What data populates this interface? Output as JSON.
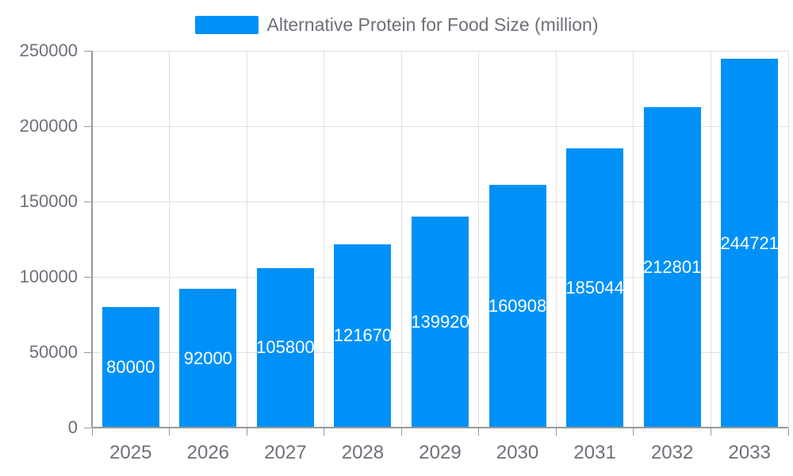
{
  "legend": {
    "label": "Alternative Protein for Food Size (million)"
  },
  "chart_data": {
    "type": "bar",
    "title": "Alternative Protein for Food Size (million)",
    "series_name": "Alternative Protein for Food Size (million)",
    "categories": [
      "2025",
      "2026",
      "2027",
      "2028",
      "2029",
      "2030",
      "2031",
      "2032",
      "2033"
    ],
    "values": [
      80000,
      92000,
      105800,
      121670,
      139920,
      160908,
      185044,
      212801,
      244721
    ],
    "value_labels": [
      "80000",
      "92000",
      "105800",
      "121670",
      "139920",
      "160908",
      "185044",
      "212801",
      "244721"
    ],
    "xlabel": "",
    "ylabel": "",
    "ylim": [
      0,
      250000
    ],
    "yticks": [
      0,
      50000,
      100000,
      150000,
      200000,
      250000
    ],
    "ytick_labels": [
      "0",
      "50000",
      "100000",
      "150000",
      "200000",
      "250000"
    ],
    "grid": true,
    "legend_position": "top-center",
    "bar_labels_position": "inside-middle"
  },
  "colors": {
    "bar": "#0091f8",
    "grid": "#e0e0e0",
    "axis": "#999999",
    "tick_text": "#6e7079",
    "legend_text": "#6e7079",
    "bar_label": "#ffffff",
    "background": "#ffffff"
  }
}
